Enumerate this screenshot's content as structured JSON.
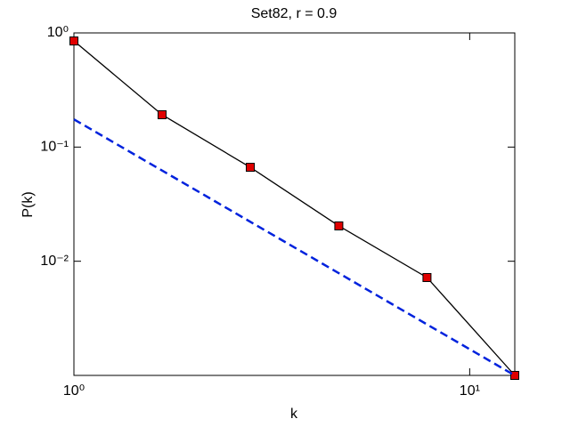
{
  "chart_data": {
    "type": "line",
    "title": "Set82, r = 0.9",
    "xlabel": "k",
    "ylabel": "P(k)",
    "xscale": "log",
    "yscale": "log",
    "xlim": [
      1,
      13
    ],
    "ylim": [
      0.001,
      1
    ],
    "xticks": [
      {
        "value": 1,
        "label": "10⁰"
      },
      {
        "value": 10,
        "label": "10¹"
      }
    ],
    "yticks": [
      {
        "value": 1,
        "label": "10⁰"
      },
      {
        "value": 0.1,
        "label": "10⁻¹"
      },
      {
        "value": 0.01,
        "label": "10⁻²"
      }
    ],
    "series": [
      {
        "color": "#000000",
        "marker_color": "#e00000",
        "dash": false,
        "x": [
          1,
          1.67,
          2.79,
          4.67,
          7.8,
          13
        ],
        "values": [
          0.85,
          0.192,
          0.0665,
          0.0204,
          0.0072,
          0.001
        ]
      },
      {
        "color": "#0022dd",
        "dash": true,
        "x": [
          1,
          13
        ],
        "values": [
          0.175,
          0.001
        ]
      }
    ]
  }
}
